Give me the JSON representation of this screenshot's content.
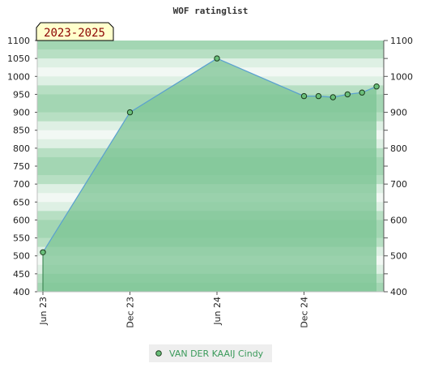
{
  "chart_data": {
    "type": "area",
    "title": "WOF ratinglist",
    "period_label": "2023-2025",
    "ylim": [
      400,
      1100
    ],
    "yticks": [
      400,
      450,
      500,
      550,
      600,
      650,
      700,
      750,
      800,
      850,
      900,
      950,
      1000,
      1050,
      1100
    ],
    "yticks_right": [
      400,
      500,
      600,
      700,
      800,
      900,
      1000,
      1100
    ],
    "xlim_months": [
      0,
      23.2
    ],
    "xticks": [
      {
        "label": "Jun 23",
        "month": 0
      },
      {
        "label": "Dec 23",
        "month": 6
      },
      {
        "label": "Jun 24",
        "month": 12
      },
      {
        "label": "Dec 24",
        "month": 18
      }
    ],
    "series": [
      {
        "name": "VAN DER KAAIJ Cindy",
        "points": [
          {
            "x": "2023-06",
            "y": 510
          },
          {
            "x": "2023-12",
            "y": 900
          },
          {
            "x": "2024-06",
            "y": 1050
          },
          {
            "x": "2024-12",
            "y": 945
          },
          {
            "x": "2025-01",
            "y": 945
          },
          {
            "x": "2025-02",
            "y": 942
          },
          {
            "x": "2025-03",
            "y": 950
          },
          {
            "x": "2025-04",
            "y": 955
          },
          {
            "x": "2025-05",
            "y": 972
          }
        ]
      }
    ],
    "grid": true,
    "legend_position": "bottom-center",
    "colors": {
      "fill": "#7cc494",
      "line": "#5aa0d0",
      "marker": "#6abf7a",
      "band_dark": "#a3d6b3",
      "band_light": "#f2f8f4",
      "legend_text": "#3a9a5a"
    }
  }
}
